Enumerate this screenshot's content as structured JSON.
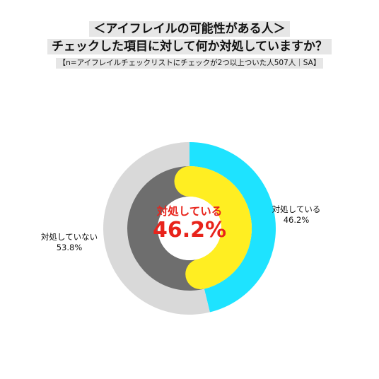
{
  "header": {
    "title_line1": "＜アイフレイルの可能性がある人＞",
    "title_line2": "チェックした項目に対して何か対処していますか？",
    "subtitle": "【n=アイフレイルチェックリストにチェックが2つ以上ついた人507人｜SA】"
  },
  "chart_data": {
    "type": "pie",
    "title": "＜アイフレイルの可能性がある人＞ チェックした項目に対して何か対処していますか？",
    "subtitle": "【n=アイフレイルチェックリストにチェックが2つ以上ついた人507人｜SA】",
    "categories": [
      "対処している",
      "対処していない"
    ],
    "values": [
      46.2,
      53.8
    ],
    "value_labels": [
      "46.2%",
      "53.8%"
    ],
    "center_label": "対処している",
    "center_value": "46.2%",
    "colors": {
      "outer": [
        "#1ee3ff",
        "#d9d9d9"
      ],
      "inner": [
        "#ffee22",
        "#6e6e6e"
      ],
      "center_text": "#e8231b"
    }
  }
}
